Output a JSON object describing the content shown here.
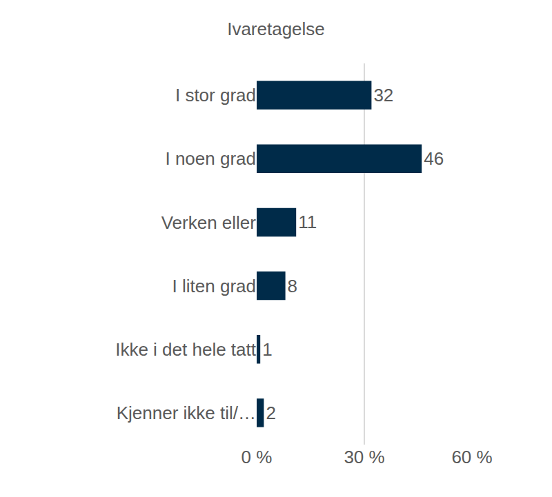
{
  "chart_data": {
    "type": "bar",
    "orientation": "horizontal",
    "title": "Ivaretagelse",
    "categories": [
      "I stor grad",
      "I noen grad",
      "Verken eller",
      "I liten grad",
      "Ikke i det hele tatt",
      "Kjenner ikke til/…"
    ],
    "values": [
      32,
      46,
      11,
      8,
      1,
      2
    ],
    "color": "#002b49",
    "xlim": [
      0,
      60
    ],
    "xticks": [
      {
        "value": 0,
        "label": "0 %"
      },
      {
        "value": 30,
        "label": "30 %"
      },
      {
        "value": 60,
        "label": "60 %"
      }
    ],
    "grid": true,
    "data_labels": true
  }
}
